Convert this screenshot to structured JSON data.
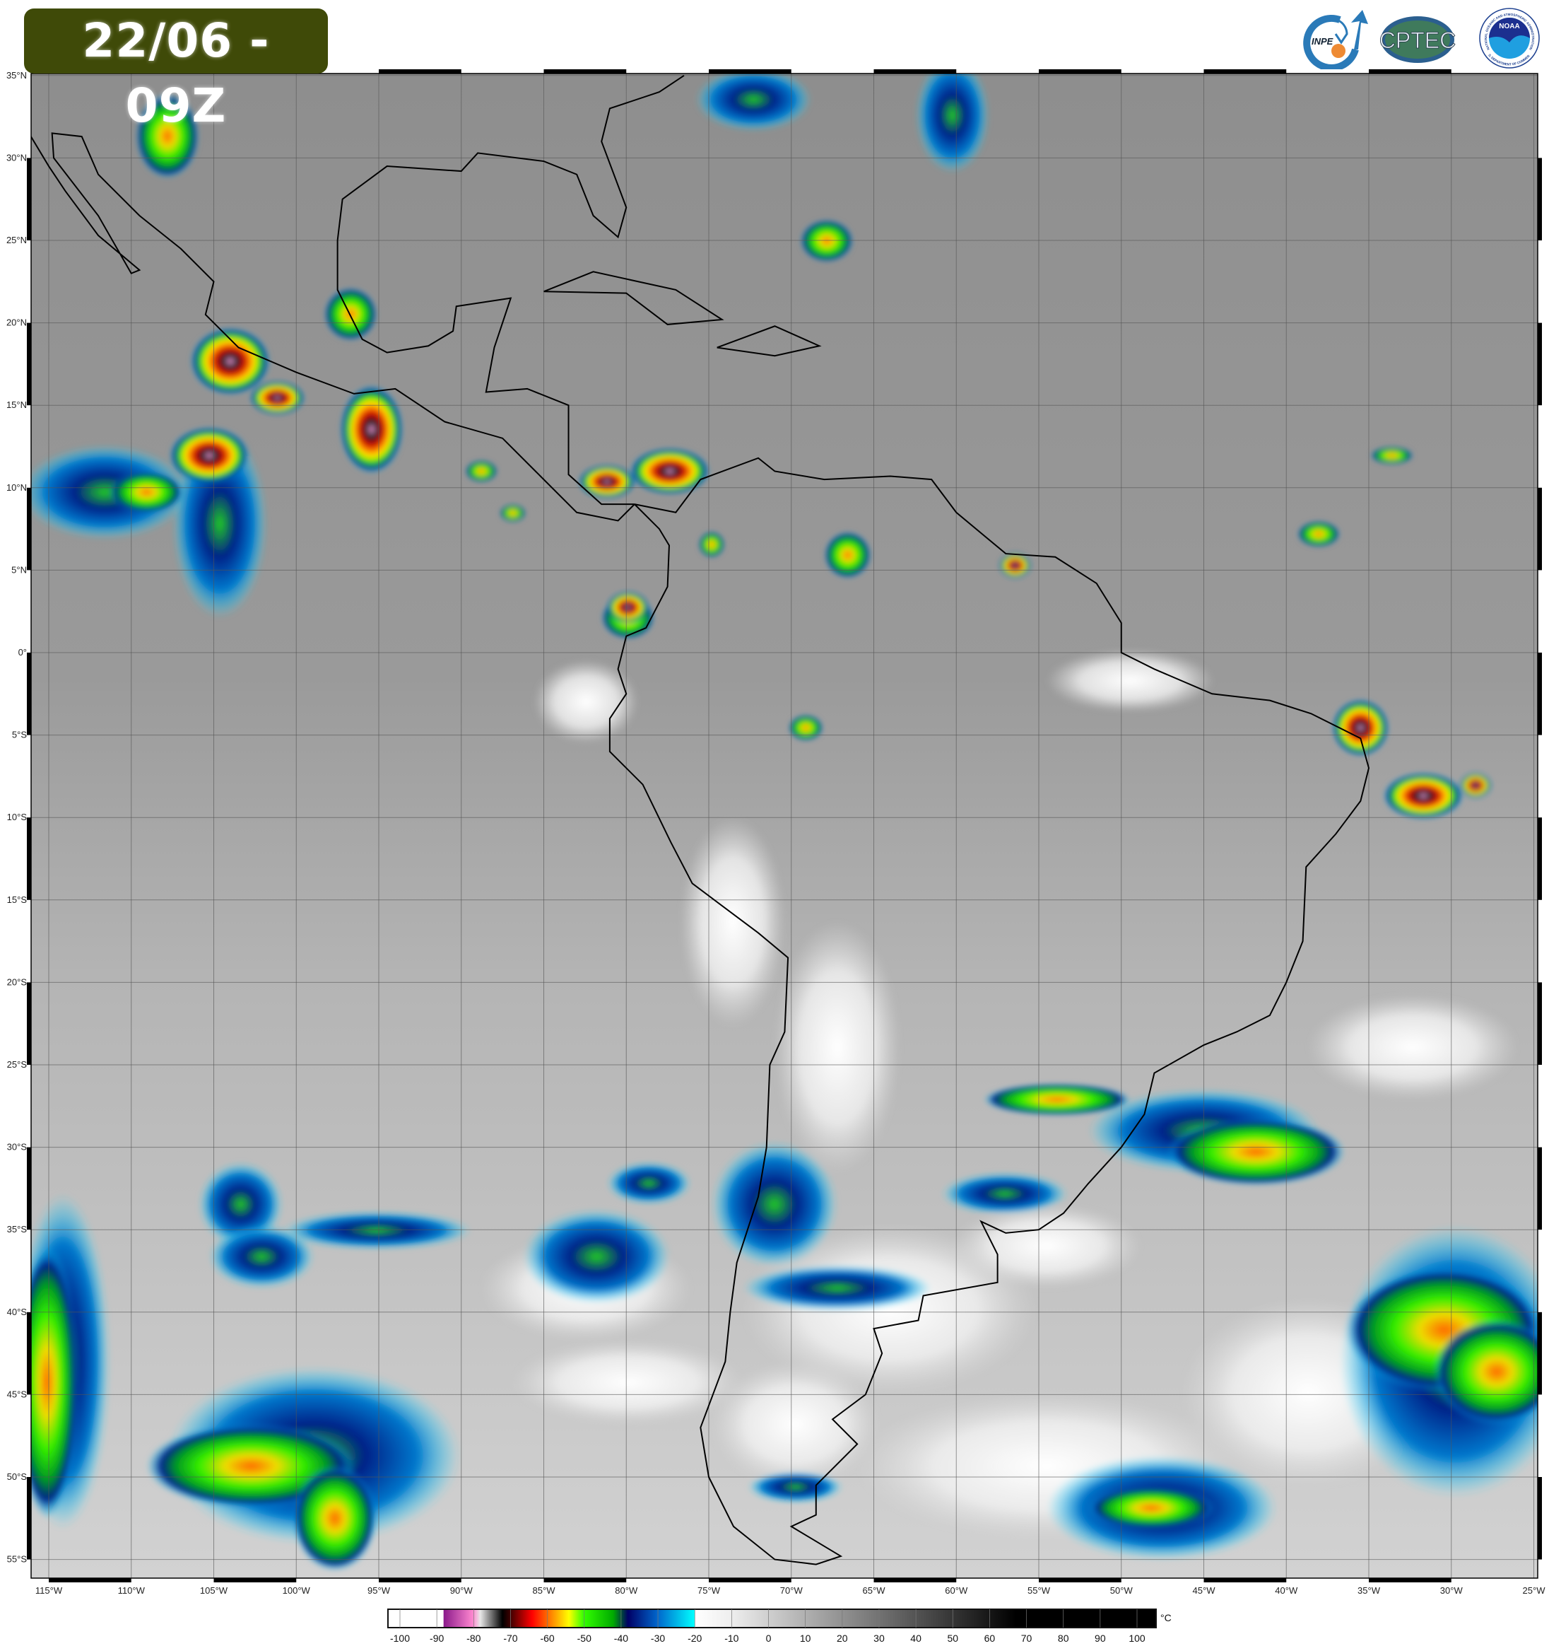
{
  "header": {
    "title": "22/06 - 09Z",
    "logos": [
      "INPE",
      "CPTEC",
      "NOAA"
    ],
    "noaa_ring_text": "NATIONAL OCEANIC AND ATMOSPHERIC ADMINISTRATION",
    "noaa_ring_text_bottom": "U.S. DEPARTMENT OF COMMERCE"
  },
  "map": {
    "lat_labels": [
      "35°N",
      "30°N",
      "25°N",
      "20°N",
      "15°N",
      "10°N",
      "5°N",
      "0°",
      "5°S",
      "10°S",
      "15°S",
      "20°S",
      "25°S",
      "30°S",
      "35°S",
      "40°S",
      "45°S",
      "50°S",
      "55°S"
    ],
    "lat_values": [
      35,
      30,
      25,
      20,
      15,
      10,
      5,
      0,
      -5,
      -10,
      -15,
      -20,
      -25,
      -30,
      -35,
      -40,
      -45,
      -50,
      -55
    ],
    "lon_labels": [
      "115°W",
      "110°W",
      "105°W",
      "100°W",
      "95°W",
      "90°W",
      "85°W",
      "80°W",
      "75°W",
      "70°W",
      "65°W",
      "60°W",
      "55°W",
      "50°W",
      "45°W",
      "40°W",
      "35°W",
      "30°W",
      "25°W"
    ],
    "lon_values": [
      -115,
      -110,
      -105,
      -100,
      -95,
      -90,
      -85,
      -80,
      -75,
      -70,
      -65,
      -60,
      -55,
      -50,
      -45,
      -40,
      -35,
      -30,
      -25
    ],
    "extent": {
      "lon": [
        -116.2,
        -25
      ],
      "lat": [
        35,
        -56
      ]
    },
    "grid": true
  },
  "colorbar": {
    "unit": "°C",
    "ticks": [
      "-100",
      "-90",
      "-80",
      "-70",
      "-60",
      "-50",
      "-40",
      "-30",
      "-20",
      "-10",
      "0",
      "10",
      "20",
      "30",
      "40",
      "50",
      "60",
      "70",
      "80",
      "90",
      "100"
    ],
    "range": [
      -103,
      105
    ],
    "stops": [
      {
        "v": -103,
        "c": "#ffffff"
      },
      {
        "v": -88,
        "c": "#ffffff"
      },
      {
        "v": -87.9,
        "c": "#8b1a8b"
      },
      {
        "v": -80,
        "c": "#ff88d0"
      },
      {
        "v": -78,
        "c": "#e8e8e8"
      },
      {
        "v": -72,
        "c": "#000000"
      },
      {
        "v": -70,
        "c": "#3a0000"
      },
      {
        "v": -64,
        "c": "#ff0000"
      },
      {
        "v": -58,
        "c": "#ff9900"
      },
      {
        "v": -54,
        "c": "#ffff00"
      },
      {
        "v": -50,
        "c": "#33ff00"
      },
      {
        "v": -42,
        "c": "#00aa00"
      },
      {
        "v": -38,
        "c": "#000066"
      },
      {
        "v": -30,
        "c": "#0066cc"
      },
      {
        "v": -20,
        "c": "#00ffff"
      },
      {
        "v": -19.9,
        "c": "#ffffff"
      },
      {
        "v": -10,
        "c": "#eeeeee"
      },
      {
        "v": 67,
        "c": "#000000"
      },
      {
        "v": 105,
        "c": "#000000"
      }
    ]
  }
}
